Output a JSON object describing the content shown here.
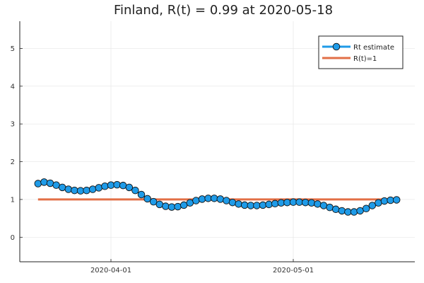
{
  "chart_data": {
    "type": "line",
    "title": "Finland, R(t) = 0.99 at 2020-05-18",
    "xlabel": "",
    "ylabel": "",
    "x_start": "2020-03-20",
    "x_end": "2020-05-18",
    "xlim": [
      "2020-03-17",
      "2020-05-21"
    ],
    "ylim": [
      -0.65,
      5.72
    ],
    "yticks": [
      0,
      1,
      2,
      3,
      4,
      5
    ],
    "xticks": [
      "2020-04-01",
      "2020-05-01"
    ],
    "grid": true,
    "legend_position": "top-right",
    "series": [
      {
        "name": "Rt estimate",
        "color": "#1f9be8",
        "marker": "circle",
        "values": [
          1.42,
          1.46,
          1.43,
          1.38,
          1.32,
          1.27,
          1.24,
          1.23,
          1.24,
          1.27,
          1.31,
          1.35,
          1.38,
          1.39,
          1.37,
          1.32,
          1.24,
          1.13,
          1.02,
          0.94,
          0.87,
          0.82,
          0.8,
          0.81,
          0.85,
          0.91,
          0.97,
          1.01,
          1.03,
          1.03,
          1.01,
          0.97,
          0.92,
          0.88,
          0.85,
          0.84,
          0.84,
          0.85,
          0.87,
          0.89,
          0.91,
          0.92,
          0.93,
          0.93,
          0.92,
          0.91,
          0.88,
          0.84,
          0.79,
          0.74,
          0.7,
          0.67,
          0.67,
          0.7,
          0.76,
          0.84,
          0.91,
          0.96,
          0.98,
          0.99
        ]
      },
      {
        "name": "R(t)=1",
        "color": "#e26f46",
        "marker": "none",
        "values": [
          1.0,
          1.0
        ]
      }
    ]
  }
}
